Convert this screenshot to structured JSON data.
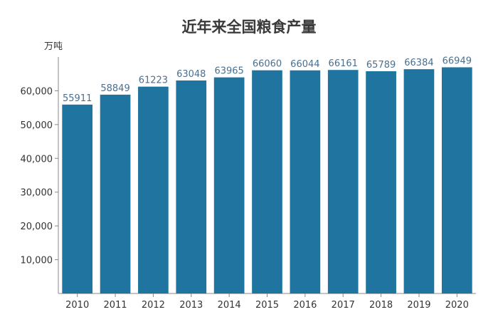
{
  "chart_data": {
    "type": "bar",
    "title": "近年来全国粮食产量",
    "ylabel": "万吨",
    "xlabel": "",
    "categories": [
      "2010",
      "2011",
      "2012",
      "2013",
      "2014",
      "2015",
      "2016",
      "2017",
      "2018",
      "2019",
      "2020"
    ],
    "values": [
      55911,
      58849,
      61223,
      63048,
      63965,
      66060,
      66044,
      66161,
      65789,
      66384,
      66949
    ],
    "data_labels": [
      "55911",
      "58849",
      "61223",
      "63048",
      "63965",
      "66060",
      "66044",
      "66161",
      "65789",
      "66384",
      "66949"
    ],
    "ylim": [
      0,
      70000
    ],
    "yticks": [
      10000,
      20000,
      30000,
      40000,
      50000,
      60000
    ],
    "ytick_labels": [
      "10,000",
      "20,000",
      "30,000",
      "40,000",
      "50,000",
      "60,000"
    ],
    "grid": false,
    "legend": "none",
    "bar_color": "#1f74a0",
    "axis_color": "#888888"
  }
}
